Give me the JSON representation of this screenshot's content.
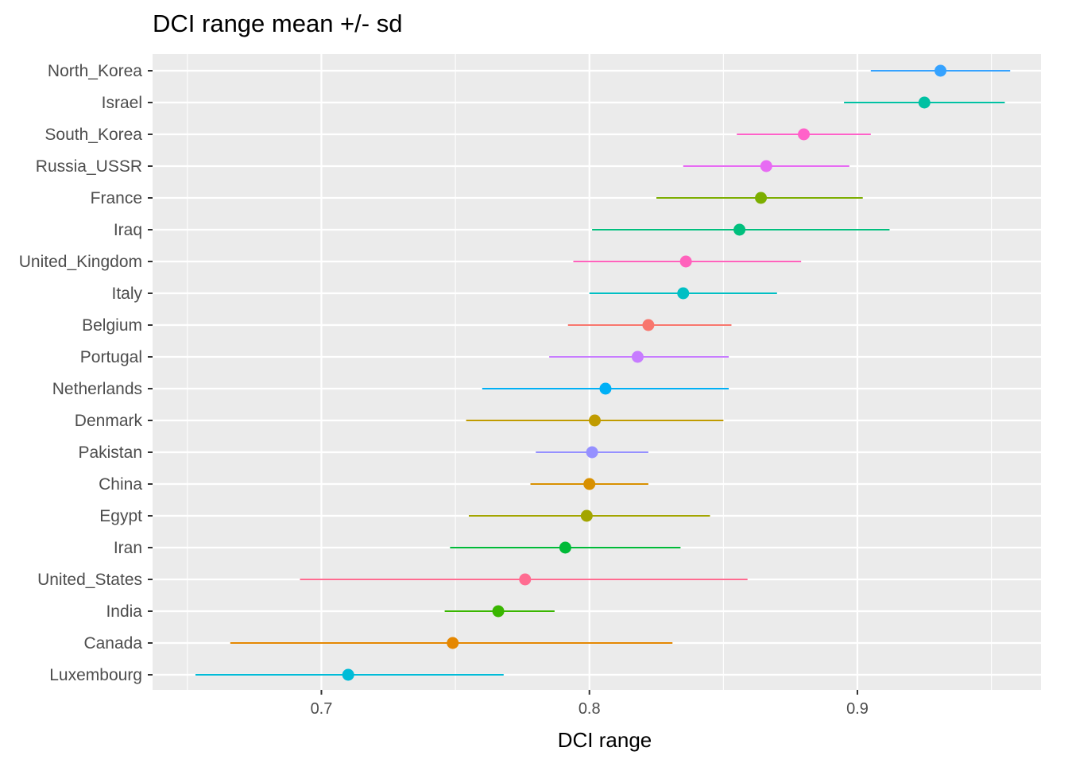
{
  "chart_data": {
    "type": "scatter",
    "title": "DCI range mean +/- sd",
    "xlabel": "DCI range",
    "ylabel": "",
    "xlim": [
      0.637,
      0.9685
    ],
    "xticks": [
      0.7,
      0.8,
      0.9
    ],
    "xtick_labels": [
      "0.7",
      "0.8",
      "0.9"
    ],
    "grid": true,
    "legend": "none",
    "points": [
      {
        "country": "North_Korea",
        "mean": 0.931,
        "lo": 0.905,
        "hi": 0.957,
        "color": "#35A2FF"
      },
      {
        "country": "Israel",
        "mean": 0.925,
        "lo": 0.895,
        "hi": 0.955,
        "color": "#00C1A3"
      },
      {
        "country": "South_Korea",
        "mean": 0.88,
        "lo": 0.855,
        "hi": 0.905,
        "color": "#FF61C9"
      },
      {
        "country": "Russia_USSR",
        "mean": 0.866,
        "lo": 0.835,
        "hi": 0.897,
        "color": "#E76BF3"
      },
      {
        "country": "France",
        "mean": 0.864,
        "lo": 0.825,
        "hi": 0.902,
        "color": "#7CAE00"
      },
      {
        "country": "Iraq",
        "mean": 0.856,
        "lo": 0.801,
        "hi": 0.912,
        "color": "#00BF7D"
      },
      {
        "country": "United_Kingdom",
        "mean": 0.836,
        "lo": 0.794,
        "hi": 0.879,
        "color": "#FF62BC"
      },
      {
        "country": "Italy",
        "mean": 0.835,
        "lo": 0.8,
        "hi": 0.87,
        "color": "#00BFC4"
      },
      {
        "country": "Belgium",
        "mean": 0.822,
        "lo": 0.792,
        "hi": 0.853,
        "color": "#F8766D"
      },
      {
        "country": "Portugal",
        "mean": 0.818,
        "lo": 0.785,
        "hi": 0.852,
        "color": "#C77CFF"
      },
      {
        "country": "Netherlands",
        "mean": 0.806,
        "lo": 0.76,
        "hi": 0.852,
        "color": "#00B0F6"
      },
      {
        "country": "Denmark",
        "mean": 0.802,
        "lo": 0.754,
        "hi": 0.85,
        "color": "#C09B00"
      },
      {
        "country": "Pakistan",
        "mean": 0.801,
        "lo": 0.78,
        "hi": 0.822,
        "color": "#9590FF"
      },
      {
        "country": "China",
        "mean": 0.8,
        "lo": 0.778,
        "hi": 0.822,
        "color": "#D89000"
      },
      {
        "country": "Egypt",
        "mean": 0.799,
        "lo": 0.755,
        "hi": 0.845,
        "color": "#A3A500"
      },
      {
        "country": "Iran",
        "mean": 0.791,
        "lo": 0.748,
        "hi": 0.834,
        "color": "#00BA38"
      },
      {
        "country": "United_States",
        "mean": 0.776,
        "lo": 0.692,
        "hi": 0.859,
        "color": "#FF6C91"
      },
      {
        "country": "India",
        "mean": 0.766,
        "lo": 0.746,
        "hi": 0.787,
        "color": "#39B600"
      },
      {
        "country": "Canada",
        "mean": 0.749,
        "lo": 0.666,
        "hi": 0.831,
        "color": "#E58700"
      },
      {
        "country": "Luxembourg",
        "mean": 0.71,
        "lo": 0.653,
        "hi": 0.768,
        "color": "#00BCD8"
      }
    ]
  }
}
